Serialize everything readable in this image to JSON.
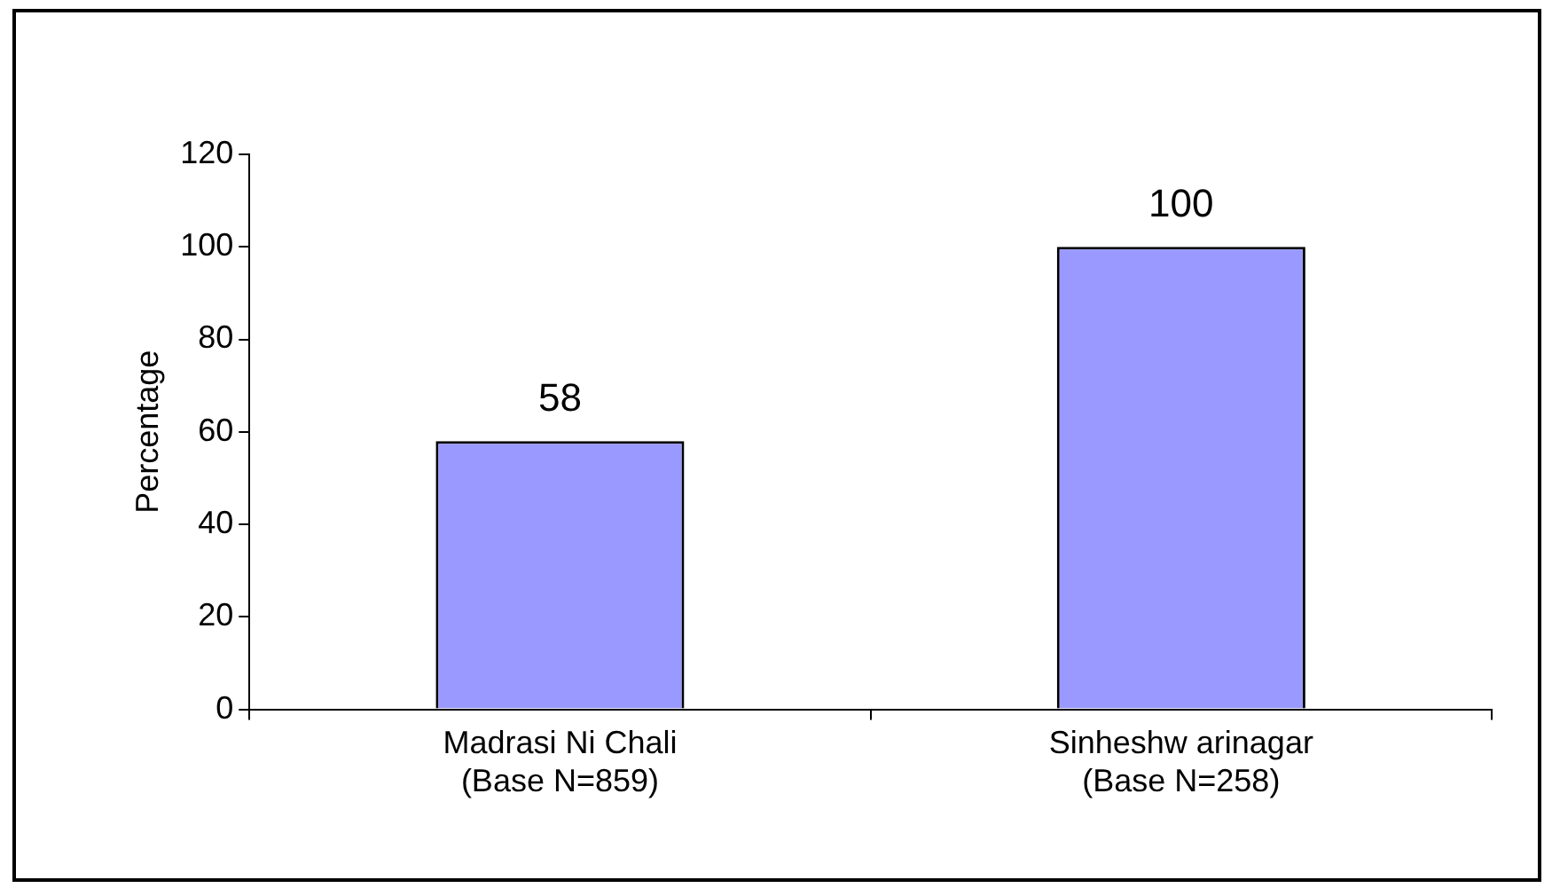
{
  "chart_data": {
    "type": "bar",
    "ylabel": "Percentage",
    "categories": [
      "Madrasi Ni Chali\n(Base N=859)",
      "Sinheshw arinagar\n(Base N=258)"
    ],
    "values": [
      58,
      100
    ],
    "color": "#9999ff",
    "ylim": [
      0,
      120
    ],
    "yticks": [
      0,
      20,
      40,
      60,
      80,
      100,
      120
    ],
    "grid": false,
    "data_labels": true,
    "legend": false
  }
}
